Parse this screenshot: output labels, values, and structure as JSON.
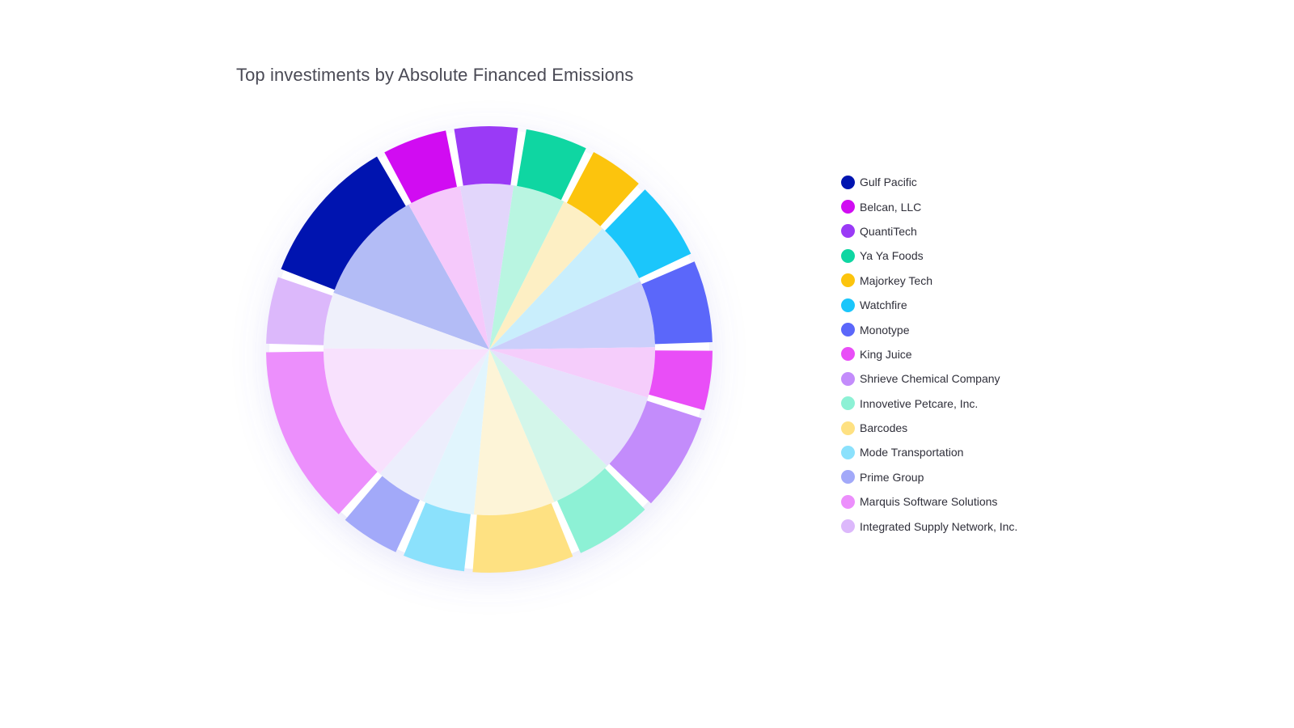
{
  "chart_data": {
    "type": "pie",
    "title": "Top investiments by Absolute Financed Emissions",
    "legend_position": "right",
    "legend": [
      {
        "label": "Gulf Pacific",
        "color": "#0014b0"
      },
      {
        "label": "Belcan, LLC",
        "color": "#d10cf2"
      },
      {
        "label": "QuantiTech",
        "color": "#9a3af6"
      },
      {
        "label": "Ya Ya Foods",
        "color": "#0fd6a2"
      },
      {
        "label": " Majorkey Tech",
        "color": "#fcc40d"
      },
      {
        "label": "Watchfire",
        "color": "#1bc6fb"
      },
      {
        "label": "Monotype",
        "color": "#5b67fa"
      },
      {
        "label": "King Juice",
        "color": "#e94ef7"
      },
      {
        "label": "Shrieve Chemical Company",
        "color": "#c38cfb"
      },
      {
        "label": "Innovetive Petcare, Inc.",
        "color": "#8df1d5"
      },
      {
        "label": "Barcodes",
        "color": "#fee182"
      },
      {
        "label": "Mode Transportation",
        "color": "#8be1fc"
      },
      {
        "label": "Prime Group",
        "color": "#a2a9f9"
      },
      {
        "label": "Marquis Software Solutions",
        "color": "#ec8ffc"
      },
      {
        "label": "Integrated Supply Network, Inc.",
        "color": "#dcb8fb"
      }
    ],
    "slices": [
      {
        "outer_color": "#0014b0",
        "inner_color": "#b3bcf6",
        "value": 12.5
      },
      {
        "outer_color": "#d10cf2",
        "inner_color": "#f5c9fb",
        "value": 5.8
      },
      {
        "outer_color": "#9a3af6",
        "inner_color": "#e2d6fb",
        "value": 5.7
      },
      {
        "outer_color": "#0fd6a2",
        "inner_color": "#b9f5e1",
        "value": 5.6
      },
      {
        "outer_color": "#fcc40d",
        "inner_color": "#fdefc4",
        "value": 5.0
      },
      {
        "outer_color": "#1bc6fb",
        "inner_color": "#c9eefc",
        "value": 6.9
      },
      {
        "outer_color": "#5b67fa",
        "inner_color": "#cbcffb",
        "value": 7.2
      },
      {
        "outer_color": "#e94ef7",
        "inner_color": "#f5cdfb",
        "value": 5.4
      },
      {
        "outer_color": "#c38cfb",
        "inner_color": "#e6e0fc",
        "value": 8.5
      },
      {
        "outer_color": "#8df1d5",
        "inner_color": "#d3f6ea",
        "value": 6.8
      },
      {
        "outer_color": "#fee182",
        "inner_color": "#fdf4d7",
        "value": 8.7
      },
      {
        "outer_color": "#8be1fc",
        "inner_color": "#e1f5fd",
        "value": 5.6
      },
      {
        "outer_color": "#a2a9f9",
        "inner_color": "#eceefc",
        "value": 5.4
      },
      {
        "outer_color": "#ec8ffc",
        "inner_color": "#f8e1fd",
        "value": 15.0
      },
      {
        "outer_color": "#dcb8fb",
        "inner_color": "#eff0fb",
        "value": 6.0
      }
    ]
  }
}
